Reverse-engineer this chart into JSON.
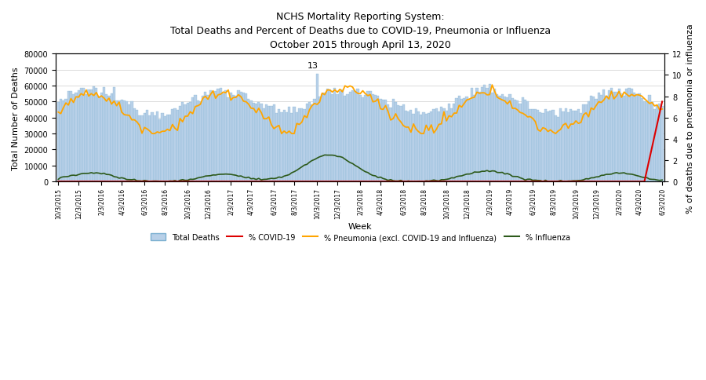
{
  "title_line1": "NCHS Mortality Reporting System:",
  "title_line2": "Total Deaths and Percent of Deaths due to COVID-19, Pneumonia or Influenza",
  "title_line3": "October 2015 through April 13, 2020",
  "xlabel": "Week",
  "ylabel_left": "Total Number of Deaths",
  "ylabel_right": "% of deaths due to pneumonia or influenza",
  "ylim_left": [
    0,
    80000
  ],
  "ylim_right": [
    0,
    12
  ],
  "annotation": "13",
  "bar_color": "#b8d0e8",
  "bar_edge_color": "#7aafd0",
  "covid_color": "#dd0000",
  "pneumonia_color": "#ffa500",
  "influenza_color": "#2d5a1b",
  "title_fontsize": 9,
  "axis_fontsize": 8,
  "tick_fontsize": 7,
  "x_tick_labels": [
    "10/3/2015",
    "12/3/2015",
    "2/3/2016",
    "4/3/2016",
    "6/3/2016",
    "8/3/2016",
    "10/3/2016",
    "12/3/2016",
    "2/3/2017",
    "4/3/2017",
    "6/3/2017",
    "8/3/2017",
    "10/3/2017",
    "12/3/2017",
    "2/3/2018",
    "4/3/2018",
    "6/3/2018",
    "8/3/2018",
    "10/3/2018",
    "12/3/2018",
    "2/3/2019",
    "4/3/2019",
    "6/3/2019",
    "8/3/2019",
    "10/3/2019",
    "12/3/2019",
    "2/3/2020",
    "4/3/2020",
    "6/3/2020"
  ],
  "n_weeks": 239
}
